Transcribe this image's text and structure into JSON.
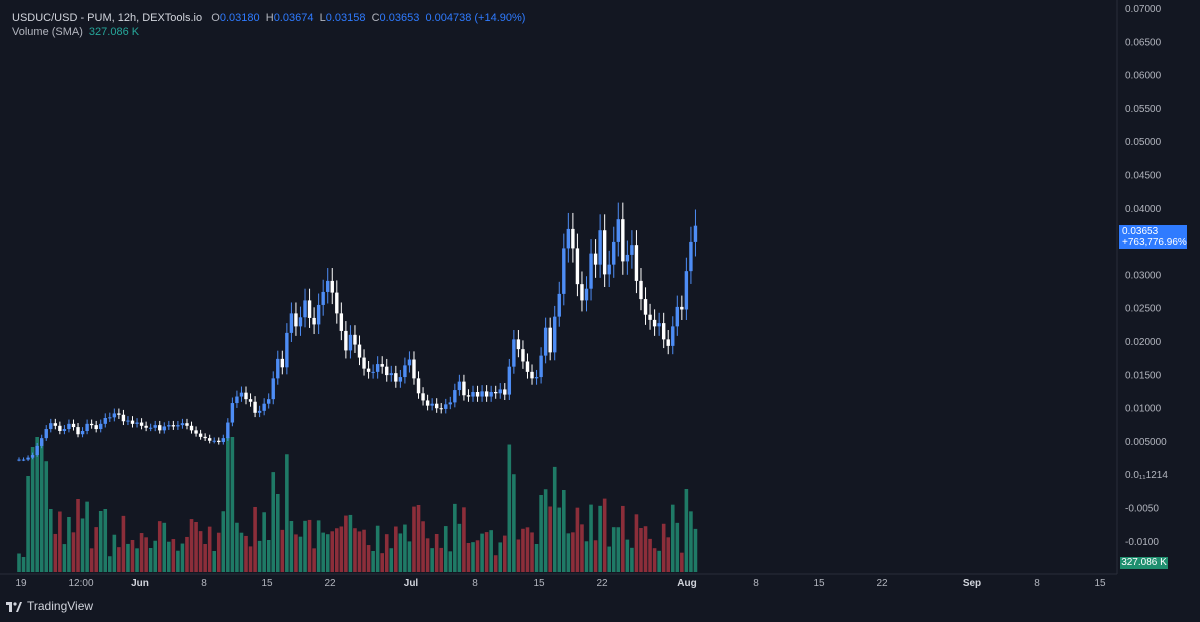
{
  "legend": {
    "symbol": "USDUC/USD - PUM, 12h, DEXTools.io",
    "o_label": "O",
    "o_val": "0.03180",
    "h_label": "H",
    "h_val": "0.03674",
    "l_label": "L",
    "l_val": "0.03158",
    "c_label": "C",
    "c_val": "0.03653",
    "change": "0.004738 (+14.90%)",
    "volume_label": "Volume (SMA)",
    "volume_val": "327.086 K"
  },
  "price_tag": {
    "price": "0.03653",
    "change": "+763,776.96%"
  },
  "volume_tag": "327.086 K",
  "brand": "TradingView",
  "colors": {
    "bg": "#131722",
    "up": "#4e8df5",
    "down": "#ffffff",
    "vol_up": "#1f7a66",
    "vol_down": "#8c2e3a",
    "axis_text": "#b2b5be",
    "accent": "#2f7bff"
  },
  "y_axis": {
    "labels": [
      "0.07000",
      "0.06500",
      "0.06000",
      "0.05500",
      "0.05000",
      "0.04500",
      "0.04000",
      "0.03500",
      "0.03000",
      "0.02500",
      "0.02000",
      "0.01500",
      "0.01000",
      "0.005000",
      "0.0₁₁1214",
      "-0.0050",
      "-0.0100"
    ]
  },
  "x_axis": {
    "labels": [
      "19",
      "12:00",
      "Jun",
      "8",
      "15",
      "22",
      "Jul",
      "8",
      "15",
      "22",
      "Aug",
      "8",
      "15",
      "22",
      "Sep",
      "8",
      "15"
    ],
    "bold": [
      "Jun",
      "Jul",
      "Aug",
      "Sep"
    ]
  },
  "chart_data": {
    "type": "candlestick",
    "interval": "12h",
    "ylim": [
      -0.012,
      0.07
    ],
    "close_values": [
      0.0005,
      0.0005,
      0.0008,
      0.0012,
      0.0026,
      0.0038,
      0.0052,
      0.0061,
      0.0057,
      0.0049,
      0.0052,
      0.006,
      0.0055,
      0.0044,
      0.0049,
      0.006,
      0.0058,
      0.0052,
      0.006,
      0.0069,
      0.007,
      0.0076,
      0.0074,
      0.0064,
      0.0065,
      0.006,
      0.0062,
      0.0057,
      0.0054,
      0.0054,
      0.0058,
      0.005,
      0.0056,
      0.0058,
      0.0056,
      0.0058,
      0.0061,
      0.0057,
      0.005,
      0.0045,
      0.004,
      0.0038,
      0.0034,
      0.0034,
      0.0032,
      0.0038,
      0.0062,
      0.0092,
      0.0102,
      0.0108,
      0.0098,
      0.0094,
      0.0077,
      0.008,
      0.0091,
      0.0098,
      0.013,
      0.016,
      0.0147,
      0.02,
      0.023,
      0.021,
      0.0224,
      0.025,
      0.0223,
      0.0213,
      0.0243,
      0.0263,
      0.028,
      0.0262,
      0.023,
      0.0203,
      0.0173,
      0.0197,
      0.0182,
      0.0162,
      0.0145,
      0.014,
      0.014,
      0.0152,
      0.0148,
      0.0135,
      0.0138,
      0.0125,
      0.0132,
      0.015,
      0.0159,
      0.013,
      0.0107,
      0.0096,
      0.0088,
      0.0091,
      0.0084,
      0.0083,
      0.009,
      0.0093,
      0.0112,
      0.0125,
      0.0104,
      0.0102,
      0.0109,
      0.0102,
      0.011,
      0.0102,
      0.0109,
      0.0107,
      0.0113,
      0.0105,
      0.0148,
      0.019,
      0.0175,
      0.0156,
      0.014,
      0.013,
      0.0132,
      0.0165,
      0.0208,
      0.017,
      0.0225,
      0.026,
      0.033,
      0.036,
      0.033,
      0.0275,
      0.025,
      0.0268,
      0.0322,
      0.0305,
      0.0358,
      0.029,
      0.0305,
      0.034,
      0.0375,
      0.031,
      0.032,
      0.0335,
      0.028,
      0.0252,
      0.0228,
      0.022,
      0.021,
      0.0215,
      0.019,
      0.018,
      0.021,
      0.024,
      0.0236,
      0.0295,
      0.034,
      0.0365
    ]
  }
}
